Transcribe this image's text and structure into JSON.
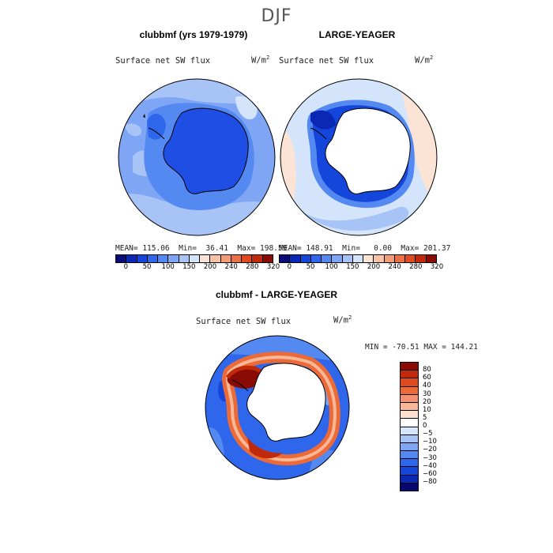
{
  "season": "DJF",
  "panels": {
    "top_left": {
      "title": "clubbmf (yrs 1979-1979)",
      "variable": "Surface net SW flux",
      "unit_base": "W/m",
      "unit_sup": "2",
      "stats": "MEAN= 115.06  Min=  36.41  Max= 198.59"
    },
    "top_right": {
      "title": "LARGE-YEAGER",
      "variable": "Surface net SW flux",
      "unit_base": "W/m",
      "unit_sup": "2",
      "stats": "MEAN= 148.91  Min=   0.00  Max= 201.37"
    },
    "bottom": {
      "title": "clubbmf - LARGE-YEAGER",
      "variable": "Surface net SW flux",
      "unit_base": "W/m",
      "unit_sup": "2",
      "stats": "MIN = -70.51 MAX = 144.21"
    }
  },
  "colorbar_top": {
    "colors": [
      "#0a0a78",
      "#0b28b4",
      "#1446dc",
      "#2e66ec",
      "#5589f2",
      "#7ea6f5",
      "#a8c4f7",
      "#d4e4fb",
      "#fbe4d6",
      "#f8c2a6",
      "#f29c78",
      "#ec7044",
      "#e04a1e",
      "#c02a0a",
      "#8a0a04"
    ],
    "ticks": [
      "0",
      "50",
      "100",
      "150",
      "200",
      "240",
      "280",
      "320"
    ]
  },
  "colorbar_diff": {
    "colors": [
      "#8a0a04",
      "#c02a0a",
      "#e04a1e",
      "#ec6a38",
      "#f29070",
      "#f8b898",
      "#fde0d0",
      "#ffffff",
      "#d6e6fb",
      "#a8c4f7",
      "#7ea6f5",
      "#5589f2",
      "#2e66ec",
      "#1446dc",
      "#0b28b4",
      "#06066e"
    ],
    "ticks": [
      "80",
      "60",
      "40",
      "30",
      "20",
      "10",
      "5",
      "0",
      "−5",
      "−10",
      "−20",
      "−30",
      "−40",
      "−60",
      "−80"
    ]
  }
}
